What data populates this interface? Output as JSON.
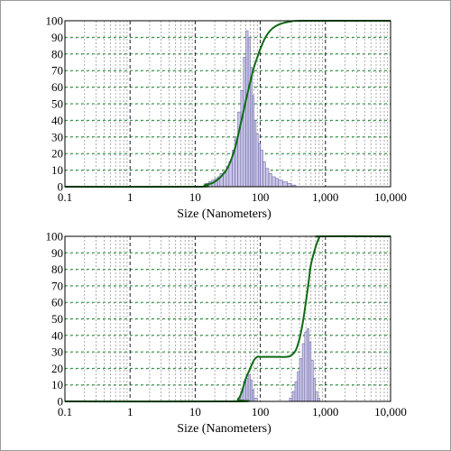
{
  "colors": {
    "axis": "#000000",
    "major_vgrid": "#1a1a2e",
    "minor_vgrid": "#9a9a9a",
    "hgrid": "#1f8a2a",
    "cumulative_line": "#0f6b14",
    "bar_fill": "#c9c6e6",
    "bar_stroke": "#6f6ba8"
  },
  "chart_data": [
    {
      "type": "bar",
      "xlabel": "Size (Nanometers)",
      "ylabel": "",
      "xscale": "log",
      "xlim": [
        0.1,
        10000
      ],
      "ylim": [
        0,
        100
      ],
      "x_ticks": [
        "0.1",
        "1",
        "10",
        "100",
        "1,000",
        "10,000"
      ],
      "y_ticks": [
        "0",
        "10",
        "20",
        "30",
        "40",
        "50",
        "60",
        "70",
        "80",
        "90",
        "100"
      ],
      "grid": true,
      "histogram": {
        "bin_edges": [
          14,
          16,
          18,
          20,
          22,
          24,
          27,
          30,
          33,
          37,
          41,
          45,
          50,
          55,
          60,
          65,
          70,
          75,
          80,
          86,
          93,
          100,
          110,
          120,
          135,
          150,
          170,
          190,
          220,
          260,
          300,
          350
        ],
        "values": [
          2,
          3,
          4,
          5,
          6,
          8,
          9,
          12,
          15,
          22,
          30,
          45,
          58,
          78,
          94,
          90,
          72,
          55,
          40,
          32,
          26,
          22,
          15,
          11,
          8,
          6,
          5,
          4,
          3,
          2,
          1
        ]
      },
      "cumulative": {
        "x": [
          0.1,
          10,
          14,
          20,
          30,
          40,
          50,
          60,
          70,
          80,
          90,
          100,
          120,
          150,
          200,
          300,
          500,
          10000
        ],
        "y": [
          0,
          0,
          1,
          3,
          10,
          22,
          38,
          52,
          63,
          72,
          78,
          83,
          90,
          95,
          98,
          99.6,
          100,
          100
        ]
      }
    },
    {
      "type": "bar",
      "xlabel": "Size (Nanometers)",
      "ylabel": "",
      "xscale": "log",
      "xlim": [
        0.1,
        10000
      ],
      "ylim": [
        0,
        100
      ],
      "x_ticks": [
        "0.1",
        "1",
        "10",
        "100",
        "1,000",
        "10,000"
      ],
      "y_ticks": [
        "0",
        "10",
        "20",
        "30",
        "40",
        "50",
        "60",
        "70",
        "80",
        "90",
        "100"
      ],
      "grid": true,
      "histogram": {
        "bin_edges": [
          45,
          50,
          55,
          60,
          65,
          70,
          75,
          80,
          90,
          280,
          310,
          340,
          370,
          400,
          440,
          480,
          520,
          560,
          600,
          650,
          700,
          760,
          820
        ],
        "values": [
          2,
          6,
          12,
          14,
          16,
          13,
          7,
          2,
          0,
          2,
          6,
          12,
          18,
          26,
          35,
          42,
          44,
          36,
          25,
          14,
          6,
          2
        ]
      },
      "cumulative": {
        "x": [
          0.1,
          40,
          45,
          50,
          55,
          60,
          70,
          80,
          90,
          100,
          150,
          250,
          300,
          350,
          400,
          450,
          500,
          550,
          600,
          700,
          800,
          900,
          10000
        ],
        "y": [
          0,
          0,
          1,
          4,
          9,
          14,
          20,
          25,
          27,
          27,
          27,
          27,
          28,
          31,
          38,
          48,
          60,
          72,
          83,
          93,
          99,
          100,
          100
        ]
      }
    }
  ]
}
